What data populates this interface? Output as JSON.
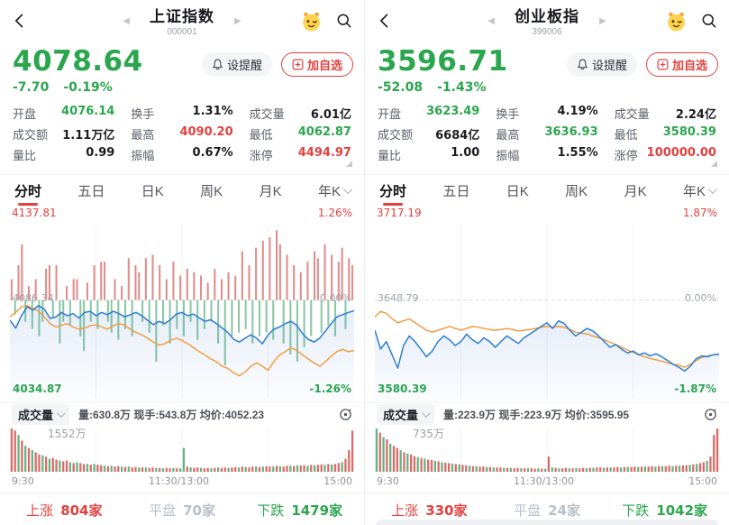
{
  "palette": {
    "green": "#2aa64d",
    "red": "#e2413e",
    "flat_gray": "#b8bfca",
    "dark": "#1c1d21",
    "blue_line": "#2f7fd0",
    "orange_line": "#f29a3a",
    "bar_red": "#df8f8e",
    "bar_green": "#8cc8a6",
    "vol_red": "#dd6a66",
    "vol_green": "#62b486"
  },
  "stocks": [
    {
      "header": {
        "title": "上证指数",
        "code": "000001"
      },
      "price": "4078.64",
      "change": "-7.70",
      "change_pct": "-0.19%",
      "buttons": {
        "alert": "设提醒",
        "add": "加自选"
      },
      "stats": [
        {
          "label": "开盘",
          "value": "4076.14",
          "color": "#2aa64d"
        },
        {
          "label": "换手",
          "value": "1.31%",
          "color": "#1c1d21"
        },
        {
          "label": "成交量",
          "value": "6.01亿",
          "color": "#1c1d21"
        },
        {
          "label": "成交额",
          "value": "1.11万亿",
          "color": "#1c1d21"
        },
        {
          "label": "最高",
          "value": "4090.20",
          "color": "#e2413e"
        },
        {
          "label": "最低",
          "value": "4062.87",
          "color": "#2aa64d"
        },
        {
          "label": "量比",
          "value": "0.99",
          "color": "#1c1d21"
        },
        {
          "label": "振幅",
          "value": "0.67%",
          "color": "#1c1d21"
        },
        {
          "label": "涨停",
          "value": "4494.97",
          "color": "#e2413e"
        }
      ],
      "tabs": [
        "分时",
        "五日",
        "日K",
        "周K",
        "月K",
        "年K"
      ],
      "chart": {
        "high_label": "4137.81",
        "high_pct": "1.26%",
        "mid_label": "4086.34",
        "mid_pct": "0.00%",
        "low_label": "4034.87",
        "low_pct": "-1.26%",
        "range": 1.26,
        "blue": [
          -0.36,
          -0.5,
          -0.28,
          -0.12,
          -0.18,
          -0.1,
          -0.16,
          -0.33,
          -0.3,
          -0.22,
          -0.28,
          -0.24,
          -0.32,
          -0.22,
          -0.2,
          -0.28,
          -0.22,
          -0.26,
          -0.2,
          -0.24,
          -0.3,
          -0.26,
          -0.22,
          -0.28,
          -0.36,
          -0.44,
          -0.38,
          -0.42,
          -0.35,
          -0.25,
          -0.22,
          -0.28,
          -0.25,
          -0.32,
          -0.38,
          -0.35,
          -0.42,
          -0.5,
          -0.58,
          -0.7,
          -0.75,
          -0.68,
          -0.62,
          -0.68,
          -0.78,
          -0.62,
          -0.52,
          -0.48,
          -0.42,
          -0.38,
          -0.45,
          -0.6,
          -0.7,
          -0.75,
          -0.68,
          -0.55,
          -0.42,
          -0.3,
          -0.26,
          -0.22,
          -0.19
        ],
        "orange": [
          -0.3,
          -0.22,
          -0.12,
          -0.1,
          -0.15,
          -0.2,
          -0.3,
          -0.42,
          -0.48,
          -0.45,
          -0.42,
          -0.48,
          -0.52,
          -0.5,
          -0.46,
          -0.44,
          -0.48,
          -0.52,
          -0.46,
          -0.42,
          -0.45,
          -0.52,
          -0.58,
          -0.62,
          -0.68,
          -0.75,
          -0.8,
          -0.78,
          -0.72,
          -0.68,
          -0.72,
          -0.78,
          -0.85,
          -0.92,
          -0.98,
          -1.05,
          -1.1,
          -1.18,
          -1.22,
          -1.3,
          -1.35,
          -1.28,
          -1.18,
          -1.12,
          -1.18,
          -1.25,
          -1.1,
          -0.98,
          -0.92,
          -0.85,
          -0.9,
          -0.98,
          -1.05,
          -1.12,
          -1.18,
          -1.1,
          -1.0,
          -0.92,
          -0.88,
          -0.92,
          -0.9
        ],
        "bars": [
          0.3,
          -0.2,
          0.5,
          0.8,
          -0.3,
          0.2,
          -0.4,
          0.3,
          -0.5,
          -0.3,
          0.45,
          0.5,
          -0.25,
          0.5,
          -0.6,
          -0.3,
          0.2,
          -0.35,
          0.3,
          0.3,
          -0.5,
          -0.7,
          0.25,
          -0.3,
          0.5,
          -0.4,
          0.55,
          0.55,
          -0.3,
          -0.45,
          0.3,
          -0.55,
          0.2,
          -0.4,
          0.6,
          -0.5,
          0.5,
          0.4,
          -0.3,
          0.6,
          -0.45,
          0.65,
          -0.85,
          0.5,
          -0.35,
          0.3,
          -0.6,
          0.55,
          -0.4,
          0.35,
          -0.5,
          0.45,
          -0.3,
          0.4,
          -0.55,
          0.35,
          -0.4,
          0.25,
          -0.3,
          0.45,
          -0.6,
          0.3,
          -0.9,
          0.4,
          -0.5,
          0.35,
          -0.45,
          0.7,
          -0.4,
          0.5,
          -0.6,
          0.75,
          -0.5,
          0.85,
          -0.45,
          0.9,
          -0.55,
          1.0,
          0.8,
          -0.6,
          0.65,
          -0.75,
          0.5,
          -0.85,
          0.4,
          -0.65,
          0.55,
          -0.5,
          0.7,
          0.6,
          -0.45,
          0.8,
          -0.35,
          0.65,
          -0.5,
          0.55,
          0.75,
          -0.4,
          0.6,
          0.5
        ]
      },
      "volume": {
        "label": "成交量",
        "info": "量:630.8万 现手:543.8万 均价:4052.23",
        "peak_label": "1552万",
        "bars": [
          1.0,
          0.95,
          -0.85,
          0.72,
          -0.6,
          0.55,
          -0.5,
          0.45,
          0.4,
          -0.38,
          0.35,
          -0.3,
          0.32,
          0.28,
          -0.26,
          0.24,
          0.26,
          -0.22,
          0.2,
          -0.22,
          0.2,
          0.18,
          -0.18,
          0.16,
          -0.18,
          0.16,
          0.15,
          -0.14,
          0.13,
          -0.14,
          0.12,
          0.13,
          -0.12,
          0.11,
          -0.12,
          0.1,
          0.11,
          -0.1,
          0.1,
          -0.1,
          0.09,
          0.1,
          -0.09,
          0.09,
          -0.08,
          0.09,
          0.08,
          -0.09,
          0.08,
          -0.08,
          -0.55,
          0.12,
          -0.1,
          0.09,
          0.1,
          -0.09,
          0.08,
          0.09,
          -0.08,
          0.09,
          -0.1,
          0.09,
          0.1,
          -0.09,
          0.1,
          0.11,
          -0.1,
          0.12,
          -0.11,
          0.1,
          0.12,
          -0.12,
          0.11,
          -0.12,
          0.13,
          0.12,
          -0.12,
          0.14,
          -0.13,
          0.12,
          0.14,
          -0.14,
          0.13,
          -0.15,
          0.14,
          0.15,
          -0.14,
          0.16,
          -0.15,
          0.16,
          0.17,
          -0.16,
          0.18,
          -0.17,
          0.18,
          0.2,
          -0.22,
          0.3,
          0.5,
          0.95
        ],
        "times": [
          "9:30",
          "11:30/13:00",
          "15:00"
        ]
      },
      "breadth": {
        "up_label": "上涨",
        "up_count": "804家",
        "flat_label": "平盘",
        "flat_count": "70家",
        "down_label": "下跌",
        "down_count": "1479家"
      }
    },
    {
      "header": {
        "title": "创业板指",
        "code": "399006"
      },
      "price": "3596.71",
      "change": "-52.08",
      "change_pct": "-1.43%",
      "buttons": {
        "alert": "设提醒",
        "add": "加自选"
      },
      "stats": [
        {
          "label": "开盘",
          "value": "3623.49",
          "color": "#2aa64d"
        },
        {
          "label": "换手",
          "value": "4.19%",
          "color": "#1c1d21"
        },
        {
          "label": "成交量",
          "value": "2.24亿",
          "color": "#1c1d21"
        },
        {
          "label": "成交额",
          "value": "6684亿",
          "color": "#1c1d21"
        },
        {
          "label": "最高",
          "value": "3636.93",
          "color": "#2aa64d"
        },
        {
          "label": "最低",
          "value": "3580.39",
          "color": "#2aa64d"
        },
        {
          "label": "量比",
          "value": "1.00",
          "color": "#1c1d21"
        },
        {
          "label": "振幅",
          "value": "1.55%",
          "color": "#1c1d21"
        },
        {
          "label": "涨停",
          "value": "100000.00",
          "color": "#e2413e"
        }
      ],
      "tabs": [
        "分时",
        "五日",
        "日K",
        "周K",
        "月K",
        "年K"
      ],
      "chart": {
        "high_label": "3717.19",
        "high_pct": "1.87%",
        "mid_label": "3648.79",
        "mid_pct": "0.00%",
        "low_label": "3580.39",
        "low_pct": "-1.87%",
        "range": 1.87,
        "blue": [
          -0.8,
          -1.3,
          -1.1,
          -1.45,
          -1.8,
          -1.2,
          -0.95,
          -1.1,
          -1.3,
          -1.5,
          -1.35,
          -1.1,
          -0.95,
          -1.05,
          -1.2,
          -1.1,
          -0.9,
          -1.05,
          -1.15,
          -1.0,
          -1.1,
          -1.25,
          -1.1,
          -0.95,
          -1.05,
          -1.15,
          -1.0,
          -0.9,
          -0.8,
          -0.7,
          -0.6,
          -0.75,
          -0.55,
          -0.62,
          -0.8,
          -0.95,
          -0.85,
          -0.75,
          -0.82,
          -0.95,
          -1.1,
          -1.25,
          -1.18,
          -1.3,
          -1.4,
          -1.35,
          -1.45,
          -1.4,
          -1.48,
          -1.42,
          -1.5,
          -1.6,
          -1.7,
          -1.78,
          -1.88,
          -1.75,
          -1.55,
          -1.48,
          -1.5,
          -1.45,
          -1.43
        ],
        "orange": [
          -0.45,
          -0.3,
          -0.35,
          -0.5,
          -0.6,
          -0.55,
          -0.5,
          -0.6,
          -0.7,
          -0.8,
          -0.85,
          -0.8,
          -0.75,
          -0.7,
          -0.75,
          -0.8,
          -0.75,
          -0.7,
          -0.72,
          -0.75,
          -0.78,
          -0.8,
          -0.78,
          -0.75,
          -0.78,
          -0.82,
          -0.8,
          -0.78,
          -0.75,
          -0.72,
          -0.7,
          -0.72,
          -0.7,
          -0.72,
          -0.78,
          -0.85,
          -0.88,
          -0.9,
          -0.95,
          -1.0,
          -1.05,
          -1.12,
          -1.18,
          -1.25,
          -1.32,
          -1.38,
          -1.45,
          -1.5,
          -1.55,
          -1.58,
          -1.62,
          -1.66,
          -1.7,
          -1.72,
          -1.78,
          -1.7,
          -1.6,
          -1.52,
          -1.48,
          -1.45,
          -1.44
        ],
        "bars": []
      },
      "volume": {
        "label": "成交量",
        "info": "量:223.9万 现手:223.9万 均价:3595.95",
        "peak_label": "735万",
        "bars": [
          -1.0,
          0.9,
          -0.8,
          0.75,
          -0.65,
          0.6,
          0.55,
          -0.5,
          0.45,
          -0.42,
          0.4,
          0.36,
          -0.34,
          0.32,
          -0.3,
          0.28,
          0.27,
          -0.25,
          0.24,
          -0.22,
          0.21,
          0.2,
          -0.19,
          0.18,
          -0.17,
          0.16,
          0.15,
          -0.14,
          0.13,
          -0.13,
          0.12,
          0.12,
          -0.11,
          0.11,
          -0.1,
          0.1,
          0.1,
          -0.09,
          0.09,
          -0.09,
          0.08,
          0.09,
          -0.08,
          0.08,
          -0.08,
          0.08,
          0.07,
          -0.08,
          0.07,
          -0.07,
          0.35,
          -0.1,
          0.09,
          -0.08,
          0.08,
          0.09,
          -0.08,
          0.08,
          -0.09,
          0.08,
          0.09,
          -0.08,
          0.09,
          -0.09,
          0.1,
          0.1,
          -0.09,
          0.1,
          -0.1,
          0.1,
          0.11,
          -0.1,
          0.11,
          -0.11,
          0.11,
          0.12,
          -0.11,
          0.12,
          -0.12,
          0.12,
          0.13,
          -0.12,
          0.13,
          -0.13,
          0.13,
          0.14,
          -0.13,
          0.14,
          -0.14,
          0.15,
          0.15,
          -0.16,
          0.17,
          -0.18,
          0.2,
          0.22,
          -0.25,
          0.35,
          0.85,
          1.0
        ],
        "times": [
          "9:30",
          "11:30/13:00",
          "15:00"
        ]
      },
      "breadth": {
        "up_label": "上涨",
        "up_count": "330家",
        "flat_label": "平盘",
        "flat_count": "24家",
        "down_label": "下跌",
        "down_count": "1042家"
      }
    }
  ]
}
